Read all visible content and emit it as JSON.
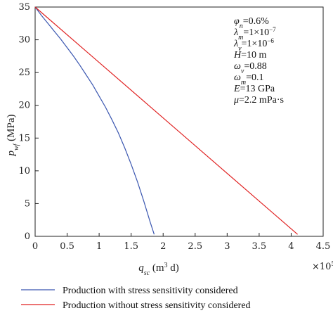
{
  "chart_data": {
    "type": "line",
    "title": "",
    "xlabel": {
      "main": "q",
      "sub": "sc",
      "unit": " (m",
      "sup": "3",
      "unit_end": " d)"
    },
    "ylabel": {
      "main": "p",
      "sub": "wf",
      "unit": " (MPa)"
    },
    "x_multiplier": "×10",
    "x_multiplier_exp": "5",
    "xlim": [
      0,
      4.5
    ],
    "ylim": [
      0,
      35
    ],
    "xticks": [
      "0",
      "0.5",
      "1",
      "1.5",
      "2",
      "2.5",
      "3",
      "3.5",
      "4",
      "4.5"
    ],
    "yticks": [
      "0",
      "5",
      "10",
      "15",
      "20",
      "25",
      "30",
      "35"
    ],
    "grid": false,
    "legend_position": "bottom",
    "parameters": [
      {
        "sym": "φ",
        "sub": "n",
        "val": "=0.6%"
      },
      {
        "sym": "λ",
        "sub": "m",
        "val": "=1×10",
        "sup": "−7"
      },
      {
        "sym": "λ",
        "sub": "v",
        "val": "=1×10",
        "sup": "−6"
      },
      {
        "sym": "H",
        "sub": "",
        "val": "=10 m"
      },
      {
        "sym": "ω",
        "sub": "v",
        "val": "=0.88"
      },
      {
        "sym": "ω",
        "sub": "m",
        "val": "=0.1"
      },
      {
        "sym": "E",
        "sub": "",
        "val": "=13 GPa"
      },
      {
        "sym": "μ",
        "sub": "",
        "val": "=2.2 mPa·s"
      }
    ],
    "series": [
      {
        "name": "Production with stress sensitivity considered",
        "color": "#3a56b0",
        "x": [
          0,
          0.1,
          0.2,
          0.3,
          0.4,
          0.5,
          0.6,
          0.7,
          0.8,
          0.9,
          1.0,
          1.1,
          1.2,
          1.3,
          1.4,
          1.5,
          1.6,
          1.7,
          1.8,
          1.86
        ],
        "y": [
          35,
          33.7,
          32.5,
          31.3,
          30.1,
          28.8,
          27.5,
          26.1,
          24.6,
          23.1,
          21.4,
          19.7,
          17.8,
          15.8,
          13.5,
          11.0,
          8.3,
          5.3,
          2.1,
          0.3
        ]
      },
      {
        "name": "Production without stress sensitivity considered",
        "color": "#e02020",
        "x": [
          0,
          4.1
        ],
        "y": [
          35,
          0.3
        ]
      }
    ]
  }
}
